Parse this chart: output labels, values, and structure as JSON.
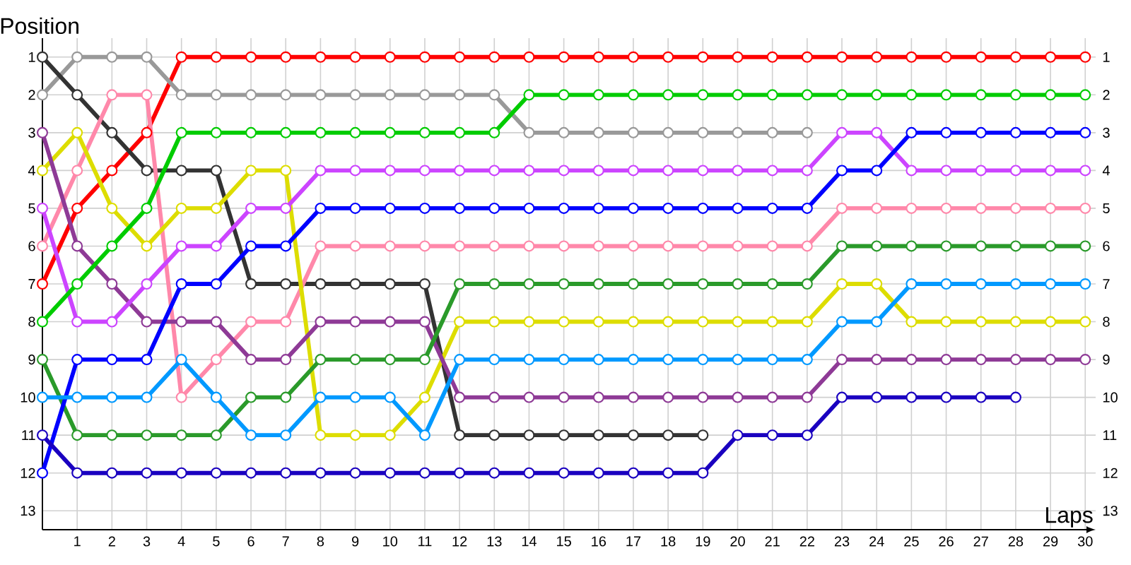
{
  "chart_data": {
    "type": "line",
    "xlabel": "Laps",
    "ylabel": "Position",
    "x": [
      0,
      1,
      2,
      3,
      4,
      5,
      6,
      7,
      8,
      9,
      10,
      11,
      12,
      13,
      14,
      15,
      16,
      17,
      18,
      19,
      20,
      21,
      22,
      23,
      24,
      25,
      26,
      27,
      28,
      29,
      30
    ],
    "xlim": [
      0,
      30.3
    ],
    "xticks": [
      1,
      2,
      3,
      4,
      5,
      6,
      7,
      8,
      9,
      10,
      11,
      12,
      13,
      14,
      15,
      16,
      17,
      18,
      19,
      20,
      21,
      22,
      23,
      24,
      25,
      26,
      27,
      28,
      29,
      30
    ],
    "ylim": [
      13.5,
      0.5
    ],
    "yticks": [
      1,
      2,
      3,
      4,
      5,
      6,
      7,
      8,
      9,
      10,
      11,
      12,
      13
    ],
    "y2lim": [
      13.5,
      0.5
    ],
    "y2ticks": [
      1,
      2,
      3,
      4,
      5,
      6,
      7,
      8,
      9,
      10,
      11,
      12,
      13
    ],
    "grid": true,
    "marker": "circle",
    "line_style": "solid",
    "series": [
      {
        "color": "#ff0000",
        "values": [
          7,
          5,
          4,
          3,
          1,
          1,
          1,
          1,
          1,
          1,
          1,
          1,
          1,
          1,
          1,
          1,
          1,
          1,
          1,
          1,
          1,
          1,
          1,
          1,
          1,
          1,
          1,
          1,
          1,
          1,
          1
        ]
      },
      {
        "color": "#999999",
        "values": [
          2,
          1,
          1,
          1,
          2,
          2,
          2,
          2,
          2,
          2,
          2,
          2,
          2,
          2,
          3,
          3,
          3,
          3,
          3,
          3,
          3,
          3,
          3,
          null,
          null,
          null,
          null,
          null,
          null,
          null,
          null
        ]
      },
      {
        "color": "#333333",
        "values": [
          1,
          2,
          3,
          4,
          4,
          4,
          7,
          7,
          7,
          7,
          7,
          7,
          11,
          11,
          11,
          11,
          11,
          11,
          11,
          11,
          null,
          null,
          null,
          null,
          null,
          null,
          null,
          null,
          null,
          null,
          null
        ]
      },
      {
        "color": "#ff88aa",
        "values": [
          6,
          4,
          2,
          2,
          10,
          9,
          8,
          8,
          6,
          6,
          6,
          6,
          6,
          6,
          6,
          6,
          6,
          6,
          6,
          6,
          6,
          6,
          6,
          5,
          5,
          5,
          5,
          5,
          5,
          5,
          5
        ]
      },
      {
        "color": "#dddd00",
        "values": [
          4,
          3,
          5,
          6,
          5,
          5,
          4,
          4,
          11,
          11,
          11,
          10,
          8,
          8,
          8,
          8,
          8,
          8,
          8,
          8,
          8,
          8,
          8,
          7,
          7,
          8,
          8,
          8,
          8,
          8,
          8
        ]
      },
      {
        "color": "#8e3a96",
        "values": [
          3,
          6,
          7,
          8,
          8,
          8,
          9,
          9,
          8,
          8,
          8,
          8,
          10,
          10,
          10,
          10,
          10,
          10,
          10,
          10,
          10,
          10,
          10,
          9,
          9,
          9,
          9,
          9,
          9,
          9,
          9
        ]
      },
      {
        "color": "#cc44ff",
        "values": [
          5,
          8,
          8,
          7,
          6,
          6,
          5,
          5,
          4,
          4,
          4,
          4,
          4,
          4,
          4,
          4,
          4,
          4,
          4,
          4,
          4,
          4,
          4,
          3,
          3,
          4,
          4,
          4,
          4,
          4,
          4
        ]
      },
      {
        "color": "#00cc00",
        "values": [
          8,
          7,
          6,
          5,
          3,
          3,
          3,
          3,
          3,
          3,
          3,
          3,
          3,
          3,
          2,
          2,
          2,
          2,
          2,
          2,
          2,
          2,
          2,
          2,
          2,
          2,
          2,
          2,
          2,
          2,
          2
        ]
      },
      {
        "color": "#2a9a2a",
        "values": [
          9,
          11,
          11,
          11,
          11,
          11,
          10,
          10,
          9,
          9,
          9,
          9,
          7,
          7,
          7,
          7,
          7,
          7,
          7,
          7,
          7,
          7,
          7,
          6,
          6,
          6,
          6,
          6,
          6,
          6,
          6
        ]
      },
      {
        "color": "#0000ff",
        "values": [
          12,
          9,
          9,
          9,
          7,
          7,
          6,
          6,
          5,
          5,
          5,
          5,
          5,
          5,
          5,
          5,
          5,
          5,
          5,
          5,
          5,
          5,
          5,
          4,
          4,
          3,
          3,
          3,
          3,
          3,
          3
        ]
      },
      {
        "color": "#0099ff",
        "values": [
          10,
          10,
          10,
          10,
          9,
          10,
          11,
          11,
          10,
          10,
          10,
          11,
          9,
          9,
          9,
          9,
          9,
          9,
          9,
          9,
          9,
          9,
          9,
          8,
          8,
          7,
          7,
          7,
          7,
          7,
          7
        ]
      },
      {
        "color": "#1a00c0",
        "values": [
          11,
          12,
          12,
          12,
          12,
          12,
          12,
          12,
          12,
          12,
          12,
          12,
          12,
          12,
          12,
          12,
          12,
          12,
          12,
          12,
          11,
          11,
          11,
          10,
          10,
          10,
          10,
          10,
          10,
          null,
          null
        ]
      }
    ]
  }
}
